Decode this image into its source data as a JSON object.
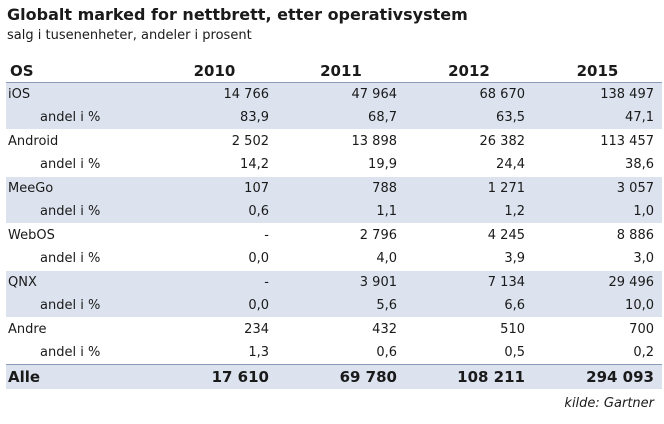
{
  "title": "Globalt marked for nettbrett, etter operativsystem",
  "subtitle": "salg i tusenenheter, andeler i prosent",
  "source": "kilde: Gartner",
  "chart_data": {
    "type": "table",
    "columns": [
      "OS",
      "2010",
      "2011",
      "2012",
      "2015"
    ],
    "share_label": "andel i %",
    "rows": [
      {
        "os": "iOS",
        "sales": [
          "14 766",
          "47 964",
          "68 670",
          "138 497"
        ],
        "shares": [
          "83,9",
          "68,7",
          "63,5",
          "47,1"
        ]
      },
      {
        "os": "Android",
        "sales": [
          "2 502",
          "13 898",
          "26 382",
          "113 457"
        ],
        "shares": [
          "14,2",
          "19,9",
          "24,4",
          "38,6"
        ]
      },
      {
        "os": "MeeGo",
        "sales": [
          "107",
          "788",
          "1 271",
          "3 057"
        ],
        "shares": [
          "0,6",
          "1,1",
          "1,2",
          "1,0"
        ]
      },
      {
        "os": "WebOS",
        "sales": [
          "-",
          "2 796",
          "4 245",
          "8 886"
        ],
        "shares": [
          "0,0",
          "4,0",
          "3,9",
          "3,0"
        ]
      },
      {
        "os": "QNX",
        "sales": [
          "-",
          "3 901",
          "7 134",
          "29 496"
        ],
        "shares": [
          "0,0",
          "5,6",
          "6,6",
          "10,0"
        ]
      },
      {
        "os": "Andre",
        "sales": [
          "234",
          "432",
          "510",
          "700"
        ],
        "shares": [
          "1,3",
          "0,6",
          "0,5",
          "0,2"
        ]
      }
    ],
    "total": {
      "label": "Alle",
      "values": [
        "17 610",
        "69 780",
        "108 211",
        "294 093"
      ]
    }
  },
  "colors": {
    "shade": "#dce3ef",
    "rule": "#8a9bb8",
    "text": "#1a1a1a"
  }
}
